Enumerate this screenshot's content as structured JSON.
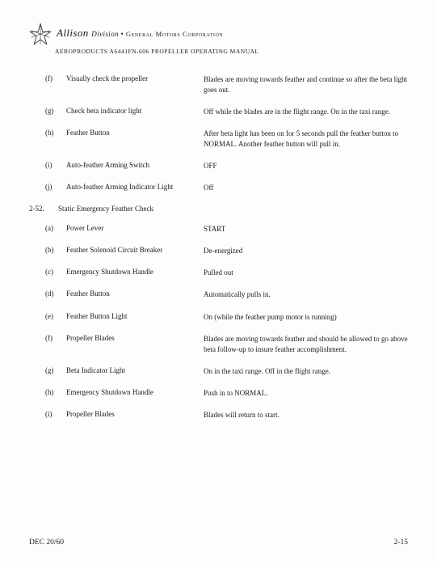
{
  "header": {
    "company_script": "Allison",
    "division_label": "Division",
    "separator": "•",
    "corporation": "General Motors Corporation",
    "subtitle": "AEROPRODUCTS A6441FN-606 PROPELLER OPERATING MANUAL"
  },
  "section1_items": [
    {
      "letter": "(f)",
      "label": "Visually check the propeller",
      "value": "Blades are moving towards feather and continue so after the beta light goes out."
    },
    {
      "letter": "(g)",
      "label": "Check beta indicator light",
      "value": "Off while the blades are in the flight range.  On in the taxi range."
    },
    {
      "letter": "(h)",
      "label": "Feather Button",
      "value": "After beta light has been on for 5 seconds pull the feather button to NORMAL.  Another feather button will pull in."
    },
    {
      "letter": "(i)",
      "label": "Auto-feather Arming Switch",
      "value": "OFF"
    },
    {
      "letter": "(j)",
      "label": "Auto-feather Arming Indicator Light",
      "value": "Off"
    }
  ],
  "section2": {
    "number": "2-52.",
    "title": "Static Emergency Feather Check"
  },
  "section2_items": [
    {
      "letter": "(a)",
      "label": "Power Lever",
      "value": "START"
    },
    {
      "letter": "(b)",
      "label": "Feather Solenoid Circuit Breaker",
      "value": "De-energized"
    },
    {
      "letter": "(c)",
      "label": "Emergency Shutdown Handle",
      "value": "Pulled out"
    },
    {
      "letter": "(d)",
      "label": "Feather Button",
      "value": "Automatically pulls in."
    },
    {
      "letter": "(e)",
      "label": "Feather Button Light",
      "value": "On (while the feather pump motor is running)"
    },
    {
      "letter": "(f)",
      "label": "Propeller Blades",
      "value": "Blades are moving towards feather and should be allowed to go above beta follow-up to insure feather accomplishment."
    },
    {
      "letter": "(g)",
      "label": "Beta Indicator Light",
      "value": "On in the taxi range.  Off in the flight range."
    },
    {
      "letter": "(h)",
      "label": "Emergency Shutdown Handle",
      "value": "Push in to NORMAL."
    },
    {
      "letter": "(i)",
      "label": "Propeller Blades",
      "value": "Blades will return to start."
    }
  ],
  "footer": {
    "date": "DEC 20/60",
    "page": "2-15"
  }
}
